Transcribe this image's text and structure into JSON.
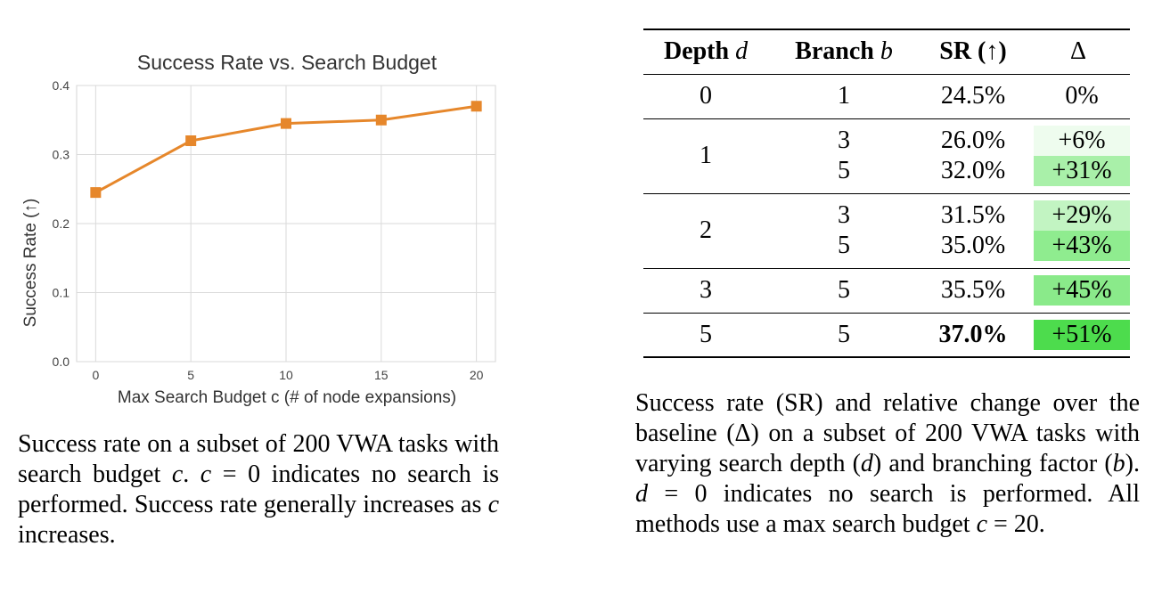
{
  "chart_data": {
    "type": "line",
    "title": "Success Rate vs. Search Budget",
    "xlabel": "Max Search Budget c (# of node expansions)",
    "ylabel": "Success Rate (↑)",
    "x": [
      0,
      5,
      10,
      15,
      20
    ],
    "xticks": [
      "0",
      "5",
      "10",
      "15",
      "20"
    ],
    "yticks": [
      "0.0",
      "0.1",
      "0.2",
      "0.3",
      "0.4"
    ],
    "ylim": [
      0,
      0.4
    ],
    "xlim": [
      -1,
      21
    ],
    "grid": true,
    "series": [
      {
        "values": [
          0.245,
          0.32,
          0.345,
          0.35,
          0.37
        ],
        "color": "#e6872b",
        "marker": "square"
      }
    ]
  },
  "left_caption": {
    "p1": "Success rate on a subset of 200 VWA tasks with search budget ",
    "c1": "c",
    "p2": ". ",
    "c2": "c",
    "p3": " = 0 indicates no search is performed. Success rate generally increases as ",
    "c3": "c",
    "p4": " increases."
  },
  "table": {
    "headers": {
      "depth": "Depth",
      "depth_var": "d",
      "branch": "Branch",
      "branch_var": "b",
      "sr": "SR (↑)",
      "delta": "Δ"
    },
    "rows": [
      {
        "depth": "0",
        "branch": [
          "1"
        ],
        "sr": [
          "24.5%"
        ],
        "delta": [
          "0%"
        ],
        "delta_color": [
          "#ffffff"
        ]
      },
      {
        "depth": "1",
        "branch": [
          "3",
          "5"
        ],
        "sr": [
          "26.0%",
          "32.0%"
        ],
        "delta": [
          "+6%",
          "+31%"
        ],
        "delta_color": [
          "#eefcee",
          "#a9f0a9"
        ]
      },
      {
        "depth": "2",
        "branch": [
          "3",
          "5"
        ],
        "sr": [
          "31.5%",
          "35.0%"
        ],
        "delta": [
          "+29%",
          "+43%"
        ],
        "delta_color": [
          "#c2f4c2",
          "#8fec8f"
        ]
      },
      {
        "depth": "3",
        "branch": [
          "5"
        ],
        "sr": [
          "35.5%"
        ],
        "delta": [
          "+45%"
        ],
        "delta_color": [
          "#8aea8a"
        ]
      },
      {
        "depth": "5",
        "branch": [
          "5"
        ],
        "sr": [
          "37.0%"
        ],
        "delta": [
          "+51%"
        ],
        "delta_color": [
          "#4ddc4d"
        ]
      }
    ]
  },
  "right_caption": {
    "p1": "Success rate (SR) and relative change over the baseline (Δ) on a subset of 200 VWA tasks with varying search depth (",
    "d1": "d",
    "p2": ") and branching factor (",
    "b1": "b",
    "p3": "). ",
    "d2": "d",
    "p4": " = 0 indicates no search is performed. All methods use a max search budget ",
    "c1": "c",
    "p5": " = 20."
  }
}
